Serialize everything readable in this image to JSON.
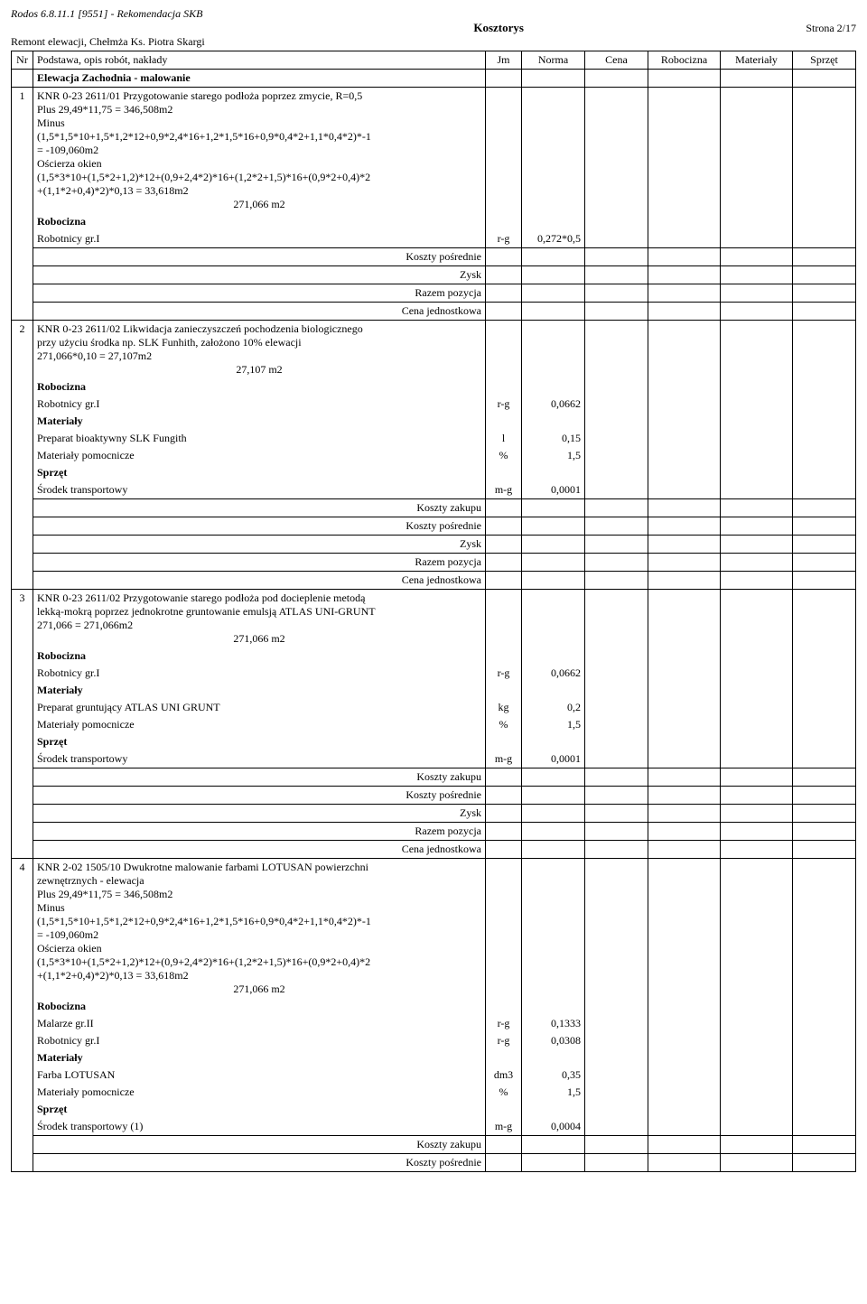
{
  "header": {
    "software": "Rodos 6.8.11.1 [9551] - Rekomendacja SKB",
    "title": "Kosztorys",
    "page": "Strona 2/17",
    "project": "Remont elewacji, Chełmża Ks. Piotra Skargi"
  },
  "columns": {
    "nr": "Nr",
    "desc": "Podstawa, opis robót, nakłady",
    "jm": "Jm",
    "norma": "Norma",
    "cena": "Cena",
    "robocizna": "Robocizna",
    "materialy": "Materiały",
    "sprzet": "Sprzęt"
  },
  "section": {
    "title": "Elewacja Zachodnia - malowanie"
  },
  "labels": {
    "robocizna": "Robocizna",
    "materialy": "Materiały",
    "sprzet": "Sprzęt",
    "koszty_zakupu": "Koszty zakupu",
    "koszty_posrednie": "Koszty pośrednie",
    "zysk": "Zysk",
    "razem_pozycja": "Razem pozycja",
    "cena_jednostkowa": "Cena jednostkowa"
  },
  "items": [
    {
      "nr": "1",
      "lines": [
        "KNR 0-23 2611/01  Przygotowanie starego podłoża poprzez zmycie, R=0,5",
        "Plus    29,49*11,75 = 346,508m2",
        "Minus",
        "(1,5*1,5*10+1,5*1,2*12+0,9*2,4*16+1,2*1,5*16+0,9*0,4*2+1,1*0,4*2)*-1",
        "= -109,060m2",
        "Ościerza okien",
        "(1,5*3*10+(1,5*2+1,2)*12+(0,9+2,4*2)*16+(1,2*2+1,5)*16+(0,9*2+0,4)*2",
        "+(1,1*2+0,4)*2)*0,13 = 33,618m2"
      ],
      "qty": "271,066  m2",
      "resources": [
        {
          "type": "header",
          "label": "Robocizna"
        },
        {
          "name": "Robotnicy gr.I",
          "jm": "r-g",
          "norma": "0,272*0,5"
        }
      ],
      "footers": [
        "Koszty pośrednie",
        "Zysk",
        "Razem pozycja",
        "Cena jednostkowa"
      ]
    },
    {
      "nr": "2",
      "lines": [
        "KNR 0-23 2611/02  Likwidacja zanieczyszczeń pochodzenia biologicznego",
        "przy użyciu środka np. SLK Funhith, założono 10% elewacji",
        "271,066*0,10 = 27,107m2"
      ],
      "qty": "27,107  m2",
      "resources": [
        {
          "type": "header",
          "label": "Robocizna"
        },
        {
          "name": "Robotnicy gr.I",
          "jm": "r-g",
          "norma": "0,0662"
        },
        {
          "type": "header",
          "label": "Materiały"
        },
        {
          "name": "Preparat bioaktywny SLK Fungith",
          "jm": "l",
          "norma": "0,15"
        },
        {
          "name": "Materiały pomocnicze",
          "jm": "%",
          "norma": "1,5"
        },
        {
          "type": "header",
          "label": "Sprzęt"
        },
        {
          "name": "Środek transportowy",
          "jm": "m-g",
          "norma": "0,0001"
        }
      ],
      "footers": [
        "Koszty zakupu",
        "Koszty pośrednie",
        "Zysk",
        "Razem pozycja",
        "Cena jednostkowa"
      ]
    },
    {
      "nr": "3",
      "lines": [
        "KNR 0-23 2611/02  Przygotowanie starego podłoża pod docieplenie metodą",
        "lekką-mokrą poprzez jednokrotne gruntowanie emulsją ATLAS UNI-GRUNT",
        "271,066 = 271,066m2"
      ],
      "qty": "271,066  m2",
      "resources": [
        {
          "type": "header",
          "label": "Robocizna"
        },
        {
          "name": "Robotnicy gr.I",
          "jm": "r-g",
          "norma": "0,0662"
        },
        {
          "type": "header",
          "label": "Materiały"
        },
        {
          "name": "Preparat gruntujący ATLAS UNI GRUNT",
          "jm": "kg",
          "norma": "0,2"
        },
        {
          "name": "Materiały pomocnicze",
          "jm": "%",
          "norma": "1,5"
        },
        {
          "type": "header",
          "label": "Sprzęt"
        },
        {
          "name": "Środek transportowy",
          "jm": "m-g",
          "norma": "0,0001"
        }
      ],
      "footers": [
        "Koszty zakupu",
        "Koszty pośrednie",
        "Zysk",
        "Razem pozycja",
        "Cena jednostkowa"
      ]
    },
    {
      "nr": "4",
      "lines": [
        "KNR 2-02 1505/10  Dwukrotne malowanie farbami LOTUSAN powierzchni",
        "zewnętrznych - elewacja",
        "Plus    29,49*11,75 = 346,508m2",
        "Minus",
        "(1,5*1,5*10+1,5*1,2*12+0,9*2,4*16+1,2*1,5*16+0,9*0,4*2+1,1*0,4*2)*-1",
        "= -109,060m2",
        "Ościerza okien",
        "(1,5*3*10+(1,5*2+1,2)*12+(0,9+2,4*2)*16+(1,2*2+1,5)*16+(0,9*2+0,4)*2",
        "+(1,1*2+0,4)*2)*0,13 = 33,618m2"
      ],
      "qty": "271,066  m2",
      "resources": [
        {
          "type": "header",
          "label": "Robocizna"
        },
        {
          "name": "Malarze gr.II",
          "jm": "r-g",
          "norma": "0,1333"
        },
        {
          "name": "Robotnicy gr.I",
          "jm": "r-g",
          "norma": "0,0308"
        },
        {
          "type": "header",
          "label": "Materiały"
        },
        {
          "name": "Farba LOTUSAN",
          "jm": "dm3",
          "norma": "0,35"
        },
        {
          "name": "Materiały pomocnicze",
          "jm": "%",
          "norma": "1,5"
        },
        {
          "type": "header",
          "label": "Sprzęt"
        },
        {
          "name": "Środek transportowy (1)",
          "jm": "m-g",
          "norma": "0,0004"
        }
      ],
      "footers": [
        "Koszty zakupu",
        "Koszty pośrednie"
      ]
    }
  ]
}
